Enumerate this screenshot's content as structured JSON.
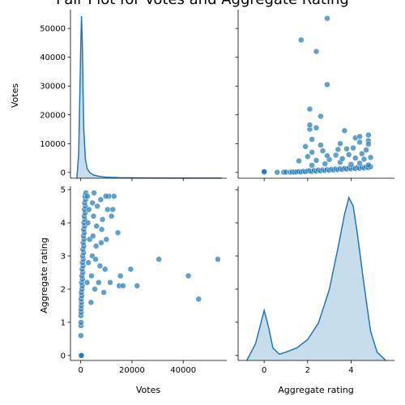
{
  "chart_data": {
    "type": "scatter",
    "title": "Pair Plot for Votes and Aggregate Rating",
    "variables": [
      "Votes",
      "Aggregate rating"
    ],
    "colors": {
      "point": "#1f77b4",
      "kde_fill": "#1f77b4",
      "kde_line": "#1f77b4"
    },
    "axes": {
      "votes": {
        "label": "Votes",
        "range": [
          -4000,
          57000
        ],
        "ticks": [
          0,
          20000,
          40000
        ]
      },
      "votes_y": {
        "label": "Votes",
        "range": [
          -2000,
          56500
        ],
        "ticks": [
          0,
          10000,
          20000,
          30000,
          40000,
          50000
        ]
      },
      "rating": {
        "label": "Aggregate rating",
        "range": [
          -1.2,
          6.0
        ],
        "ticks": [
          0,
          2,
          4
        ]
      },
      "rating_y": {
        "label": "Aggregate rating",
        "range": [
          -0.15,
          5.1
        ],
        "ticks": [
          0,
          1,
          2,
          3,
          4,
          5
        ]
      }
    },
    "votes_kde": {
      "x": [
        -1500,
        -800,
        0,
        300,
        600,
        900,
        1200,
        1800,
        2500,
        3500,
        5000,
        7000,
        10000,
        15000,
        25000,
        40000,
        55000
      ],
      "density": [
        0,
        0.15,
        0.8,
        1.0,
        0.85,
        0.55,
        0.3,
        0.12,
        0.06,
        0.035,
        0.02,
        0.012,
        0.006,
        0.003,
        0.0015,
        0.0008,
        0.0005
      ]
    },
    "rating_kde": {
      "x": [
        -0.8,
        -0.4,
        -0.2,
        0,
        0.2,
        0.4,
        0.7,
        1.0,
        1.5,
        2.0,
        2.5,
        3.0,
        3.4,
        3.7,
        3.9,
        4.1,
        4.3,
        4.6,
        4.9,
        5.2,
        5.6
      ],
      "density": [
        0.0,
        0.04,
        0.08,
        0.12,
        0.08,
        0.03,
        0.015,
        0.02,
        0.03,
        0.05,
        0.09,
        0.17,
        0.27,
        0.35,
        0.39,
        0.37,
        0.3,
        0.18,
        0.07,
        0.02,
        0.0
      ]
    },
    "scatter_points": [
      [
        0,
        0
      ],
      [
        100,
        0
      ],
      [
        300,
        0
      ],
      [
        50,
        0.6
      ],
      [
        80,
        0.9
      ],
      [
        120,
        1.0
      ],
      [
        60,
        1.2
      ],
      [
        150,
        1.3
      ],
      [
        90,
        1.4
      ],
      [
        200,
        1.5
      ],
      [
        300,
        1.6
      ],
      [
        150,
        1.7
      ],
      [
        400,
        1.8
      ],
      [
        250,
        1.9
      ],
      [
        500,
        2.0
      ],
      [
        600,
        2.1
      ],
      [
        350,
        2.2
      ],
      [
        700,
        2.3
      ],
      [
        450,
        2.4
      ],
      [
        800,
        2.5
      ],
      [
        550,
        2.6
      ],
      [
        900,
        2.7
      ],
      [
        650,
        2.8
      ],
      [
        1000,
        2.9
      ],
      [
        750,
        3.0
      ],
      [
        1100,
        3.1
      ],
      [
        850,
        3.2
      ],
      [
        1200,
        3.3
      ],
      [
        950,
        3.4
      ],
      [
        1300,
        3.5
      ],
      [
        1050,
        3.6
      ],
      [
        1400,
        3.7
      ],
      [
        1150,
        3.8
      ],
      [
        1500,
        3.9
      ],
      [
        1250,
        4.0
      ],
      [
        1600,
        4.1
      ],
      [
        1350,
        4.2
      ],
      [
        1700,
        4.3
      ],
      [
        1450,
        4.4
      ],
      [
        1800,
        4.5
      ],
      [
        1550,
        4.6
      ],
      [
        1900,
        4.7
      ],
      [
        1650,
        4.8
      ],
      [
        2000,
        4.9
      ],
      [
        2500,
        2.2
      ],
      [
        3000,
        2.8
      ],
      [
        3500,
        3.5
      ],
      [
        2800,
        4.0
      ],
      [
        3200,
        4.4
      ],
      [
        2600,
        4.8
      ],
      [
        4000,
        1.6
      ],
      [
        4200,
        2.4
      ],
      [
        4500,
        3.0
      ],
      [
        4800,
        3.6
      ],
      [
        5000,
        4.2
      ],
      [
        4600,
        4.6
      ],
      [
        5500,
        2.0
      ],
      [
        5800,
        2.9
      ],
      [
        6000,
        3.3
      ],
      [
        6200,
        3.9
      ],
      [
        6500,
        4.5
      ],
      [
        5200,
        4.9
      ],
      [
        7000,
        2.2
      ],
      [
        7500,
        2.7
      ],
      [
        8000,
        3.4
      ],
      [
        8200,
        3.8
      ],
      [
        8500,
        4.1
      ],
      [
        7800,
        4.7
      ],
      [
        9000,
        1.9
      ],
      [
        9500,
        2.6
      ],
      [
        10000,
        3.5
      ],
      [
        10500,
        4.4
      ],
      [
        11000,
        4.8
      ],
      [
        9800,
        4.8
      ],
      [
        11500,
        2.2
      ],
      [
        12000,
        4.2
      ],
      [
        12500,
        4.4
      ],
      [
        13000,
        4.8
      ],
      [
        14500,
        3.7
      ],
      [
        15000,
        2.1
      ],
      [
        15500,
        2.4
      ],
      [
        16500,
        2.1
      ],
      [
        19500,
        2.6
      ],
      [
        22000,
        2.1
      ],
      [
        30500,
        2.9
      ],
      [
        42000,
        2.4
      ],
      [
        46000,
        1.7
      ],
      [
        53500,
        2.9
      ]
    ]
  }
}
